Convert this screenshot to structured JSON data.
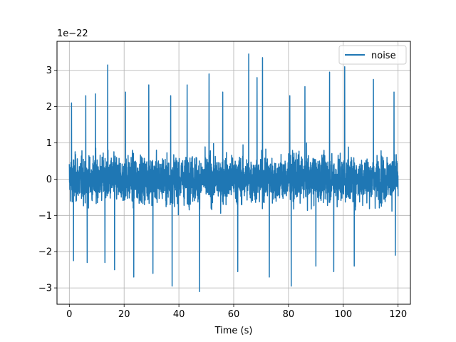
{
  "chart_data": {
    "type": "line",
    "title": "",
    "xlabel": "Time (s)",
    "ylabel": "",
    "y_offset_label": "1e−22",
    "xlim": [
      -4.5,
      124.5
    ],
    "ylim": [
      -3.45,
      3.8
    ],
    "x_ticks": [
      0,
      20,
      40,
      60,
      80,
      100,
      120
    ],
    "y_ticks": [
      -3,
      -2,
      -1,
      0,
      1,
      2,
      3
    ],
    "x_tick_labels": [
      "0",
      "20",
      "40",
      "60",
      "80",
      "100",
      "120"
    ],
    "y_tick_labels": [
      "−3",
      "−2",
      "−1",
      "0",
      "1",
      "2",
      "3"
    ],
    "grid": true,
    "legend": {
      "position": "top-right",
      "entries": [
        "noise"
      ]
    },
    "series": [
      {
        "name": "noise",
        "color": "#1f77b4",
        "x_range": [
          0,
          120
        ],
        "typical_envelope": [
          -1.2,
          1.2
        ],
        "peaks": [
          {
            "x": 0.8,
            "y": 2.1
          },
          {
            "x": 1.5,
            "y": -2.25
          },
          {
            "x": 6.0,
            "y": 2.3
          },
          {
            "x": 6.5,
            "y": -2.3
          },
          {
            "x": 9.5,
            "y": 2.35
          },
          {
            "x": 13.0,
            "y": -2.3
          },
          {
            "x": 14.0,
            "y": 3.15
          },
          {
            "x": 16.5,
            "y": -2.5
          },
          {
            "x": 20.5,
            "y": 2.4
          },
          {
            "x": 23.5,
            "y": -2.7
          },
          {
            "x": 29.0,
            "y": 2.6
          },
          {
            "x": 30.5,
            "y": -2.6
          },
          {
            "x": 37.0,
            "y": 2.3
          },
          {
            "x": 37.5,
            "y": -2.95
          },
          {
            "x": 43.0,
            "y": 2.6
          },
          {
            "x": 47.5,
            "y": -3.1
          },
          {
            "x": 51.0,
            "y": 2.9
          },
          {
            "x": 56.0,
            "y": 2.4
          },
          {
            "x": 61.5,
            "y": -2.55
          },
          {
            "x": 65.5,
            "y": 3.45
          },
          {
            "x": 68.5,
            "y": 2.8
          },
          {
            "x": 70.5,
            "y": 3.35
          },
          {
            "x": 73.0,
            "y": -2.7
          },
          {
            "x": 80.5,
            "y": 2.3
          },
          {
            "x": 81.0,
            "y": -2.95
          },
          {
            "x": 86.0,
            "y": 2.55
          },
          {
            "x": 90.0,
            "y": -2.4
          },
          {
            "x": 95.0,
            "y": 2.95
          },
          {
            "x": 96.5,
            "y": -2.55
          },
          {
            "x": 100.5,
            "y": 3.1
          },
          {
            "x": 104.0,
            "y": -2.4
          },
          {
            "x": 111.0,
            "y": 2.75
          },
          {
            "x": 118.5,
            "y": 2.4
          },
          {
            "x": 119.0,
            "y": -2.1
          }
        ]
      }
    ]
  }
}
